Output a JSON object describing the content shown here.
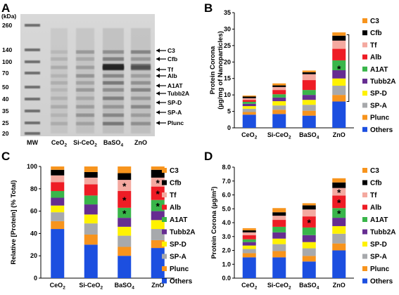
{
  "panels": {
    "a": "A",
    "b": "B",
    "c": "C",
    "d": "D"
  },
  "gel": {
    "unit": "(kDa)",
    "markers": [
      "260",
      "140",
      "100",
      "70",
      "50",
      "40",
      "35",
      "25",
      "20"
    ],
    "bands": [
      "C3",
      "Cfb",
      "Tf",
      "Alb",
      "A1AT",
      "Tubb2A",
      "SP-D",
      "SP-A",
      "Plunc"
    ],
    "lanes": [
      "MW",
      "CeO2",
      "Si-CeO2",
      "BaSO4",
      "ZnO"
    ]
  },
  "colors": {
    "C3": "#f7941d",
    "Cfb": "#000000",
    "Tf": "#f4a9a0",
    "Alb": "#ee1c25",
    "A1AT": "#39b54a",
    "Tubb2A": "#662d91",
    "SP-D": "#fff200",
    "SP-A": "#a7a9ac",
    "Plunc": "#f7941d",
    "Others": "#1c4fe0"
  },
  "chart_data": [
    {
      "panel": "B",
      "type": "bar",
      "stacked": true,
      "ylabel": "Protein Corona (µg/mg of Nanoparticles)",
      "ylim": [
        0,
        35
      ],
      "yticks": [
        "0",
        "5",
        "10",
        "15",
        "20",
        "25",
        "30",
        "35"
      ],
      "categories": [
        "CeO2",
        "Si-CeO2",
        "BaSO4",
        "ZnO"
      ],
      "legend": [
        "C3",
        "Cfb",
        "Tf",
        "Alb",
        "A1AT",
        "Tubb2A",
        "SP-D",
        "SP-A",
        "Plunc",
        "Others"
      ],
      "series": [
        {
          "name": "Others",
          "values": [
            4.0,
            4.2,
            3.7,
            8.0
          ]
        },
        {
          "name": "Plunc",
          "values": [
            0.8,
            1.3,
            1.5,
            2.0
          ]
        },
        {
          "name": "SP-A",
          "values": [
            1.0,
            1.3,
            1.8,
            2.8
          ]
        },
        {
          "name": "SP-D",
          "values": [
            0.8,
            1.3,
            1.5,
            2.2
          ]
        },
        {
          "name": "Tubb2A",
          "values": [
            0.7,
            1.1,
            1.5,
            2.5
          ]
        },
        {
          "name": "A1AT",
          "values": [
            0.6,
            1.0,
            1.5,
            3.0
          ]
        },
        {
          "name": "Alb",
          "values": [
            0.6,
            1.3,
            3.0,
            3.5
          ]
        },
        {
          "name": "Tf",
          "values": [
            0.5,
            0.9,
            1.8,
            2.5
          ]
        },
        {
          "name": "Cfb",
          "values": [
            0.5,
            0.5,
            0.6,
            1.5
          ]
        },
        {
          "name": "C3",
          "values": [
            0.3,
            0.6,
            0.5,
            1.0
          ]
        }
      ],
      "annotations": [
        "*"
      ]
    },
    {
      "panel": "C",
      "type": "bar",
      "stacked": true,
      "ylabel": "Relative [Protein] (% Total)",
      "ylim": [
        0,
        100
      ],
      "yticks": [
        "0",
        "20",
        "40",
        "60",
        "80",
        "100"
      ],
      "categories": [
        "CeO2",
        "Si-CeO2",
        "BaSO4",
        "ZnO"
      ],
      "legend": [
        "C3",
        "Cfb",
        "Tf",
        "Alb",
        "A1AT",
        "Tubb2A",
        "SP-D",
        "SP-A",
        "Plunc",
        "Others"
      ],
      "series": [
        {
          "name": "Others",
          "values": [
            44,
            30,
            20,
            27
          ]
        },
        {
          "name": "Plunc",
          "values": [
            7,
            9,
            8,
            7
          ]
        },
        {
          "name": "SP-A",
          "values": [
            8,
            10,
            10,
            10
          ]
        },
        {
          "name": "SP-D",
          "values": [
            6,
            8,
            8,
            8
          ]
        },
        {
          "name": "Tubb2A",
          "values": [
            7,
            9,
            8,
            8
          ]
        },
        {
          "name": "A1AT",
          "values": [
            6,
            8,
            9,
            10
          ]
        },
        {
          "name": "Alb",
          "values": [
            8,
            10,
            15,
            12
          ]
        },
        {
          "name": "Tf",
          "values": [
            6,
            6,
            10,
            8
          ]
        },
        {
          "name": "Cfb",
          "values": [
            5,
            5,
            6,
            7
          ]
        },
        {
          "name": "C3",
          "values": [
            3,
            5,
            6,
            3
          ]
        }
      ],
      "stars": [
        [
          "BaSO4",
          "Tf"
        ],
        [
          "BaSO4",
          "Alb"
        ],
        [
          "BaSO4",
          "A1AT"
        ],
        [
          "ZnO",
          "Tf"
        ],
        [
          "ZnO",
          "Alb"
        ],
        [
          "ZnO",
          "A1AT"
        ]
      ]
    },
    {
      "panel": "D",
      "type": "bar",
      "stacked": true,
      "ylabel": "Protein Corona (µg/m²)",
      "ylim": [
        0,
        8
      ],
      "yticks": [
        "0.0",
        "1.0",
        "2.0",
        "3.0",
        "4.0",
        "5.0",
        "6.0",
        "7.0",
        "8.0"
      ],
      "categories": [
        "CeO2",
        "Si-CeO2",
        "BaSO4",
        "ZnO"
      ],
      "legend": [
        "C3",
        "Cfb",
        "Tf",
        "Alb",
        "A1AT",
        "Tubb2A",
        "SP-D",
        "SP-A",
        "Plunc",
        "Others"
      ],
      "series": [
        {
          "name": "Others",
          "values": [
            1.5,
            1.5,
            1.2,
            2.0
          ]
        },
        {
          "name": "Plunc",
          "values": [
            0.3,
            0.45,
            0.4,
            0.5
          ]
        },
        {
          "name": "SP-A",
          "values": [
            0.3,
            0.5,
            0.55,
            0.7
          ]
        },
        {
          "name": "SP-D",
          "values": [
            0.25,
            0.4,
            0.45,
            0.55
          ]
        },
        {
          "name": "Tubb2A",
          "values": [
            0.25,
            0.45,
            0.5,
            0.6
          ]
        },
        {
          "name": "A1AT",
          "values": [
            0.2,
            0.4,
            0.55,
            0.7
          ]
        },
        {
          "name": "Alb",
          "values": [
            0.3,
            0.5,
            0.8,
            0.9
          ]
        },
        {
          "name": "Tf",
          "values": [
            0.2,
            0.3,
            0.5,
            0.55
          ]
        },
        {
          "name": "Cfb",
          "values": [
            0.15,
            0.25,
            0.3,
            0.4
          ]
        },
        {
          "name": "C3",
          "values": [
            0.15,
            0.3,
            0.15,
            0.3
          ]
        }
      ],
      "stars": [
        [
          "BaSO4",
          "Alb"
        ],
        [
          "ZnO",
          "Tf"
        ],
        [
          "ZnO",
          "Alb"
        ],
        [
          "ZnO",
          "A1AT"
        ]
      ]
    }
  ]
}
